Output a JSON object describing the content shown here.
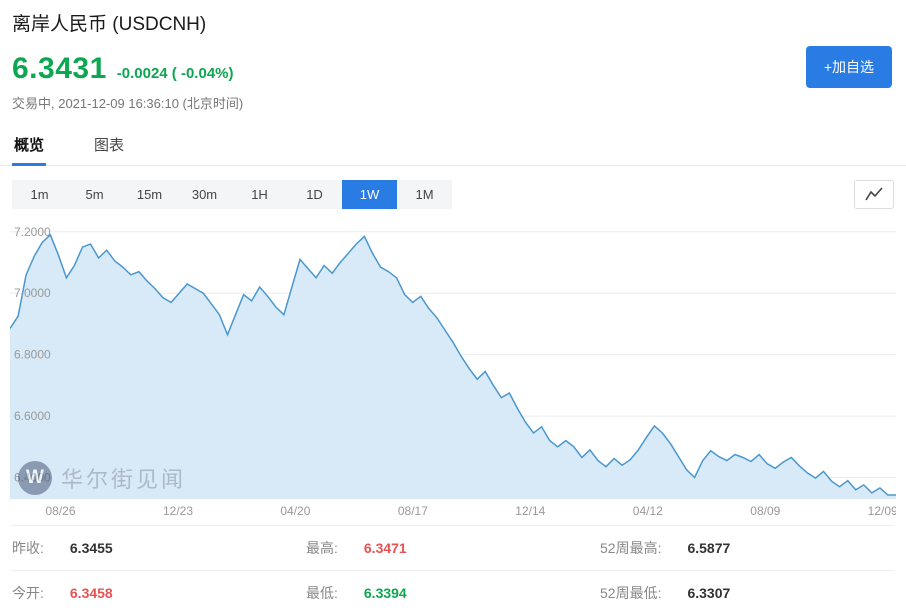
{
  "header": {
    "title": "离岸人民币 (USDCNH)",
    "price": "6.3431",
    "change": "-0.0024 ( -0.04%)",
    "status_line": "交易中, 2021-12-09 16:36:10 (北京时间)",
    "watchlist_button_label": "+加自选"
  },
  "tabs": [
    {
      "label": "概览",
      "active": true
    },
    {
      "label": "图表",
      "active": false
    }
  ],
  "intervals": [
    {
      "label": "1m",
      "active": false
    },
    {
      "label": "5m",
      "active": false
    },
    {
      "label": "15m",
      "active": false
    },
    {
      "label": "30m",
      "active": false
    },
    {
      "label": "1H",
      "active": false
    },
    {
      "label": "1D",
      "active": false
    },
    {
      "label": "1W",
      "active": true
    },
    {
      "label": "1M",
      "active": false
    }
  ],
  "watermark": {
    "logo_letter": "W",
    "text": "华尔街见闻"
  },
  "stats": [
    {
      "label": "昨收:",
      "value": "6.3455",
      "tone": "text"
    },
    {
      "label": "今开:",
      "value": "6.3458",
      "tone": "red"
    },
    {
      "label": "最高:",
      "value": "6.3471",
      "tone": "red"
    },
    {
      "label": "最低:",
      "value": "6.3394",
      "tone": "green"
    },
    {
      "label": "52周最高:",
      "value": "6.5877",
      "tone": "text"
    },
    {
      "label": "52周最低:",
      "value": "6.3307",
      "tone": "text"
    }
  ],
  "colors": {
    "green": "#0ca750",
    "red": "#e85252",
    "blue": "#2a7ce5",
    "text": "#333333",
    "axis_text": "#999999",
    "grid": "#ececec",
    "line": "#4a97cf",
    "fill": "#d8eaf8",
    "icon": "#444444"
  },
  "chart_data": {
    "type": "area",
    "title": "USDCNH 1W price history",
    "legend": [],
    "grid": true,
    "x_labels": [
      "08/26",
      "12/23",
      "04/20",
      "08/17",
      "12/14",
      "04/12",
      "08/09",
      "12/09"
    ],
    "y_ticks": [
      7.2,
      7.0,
      6.8,
      6.6,
      6.4
    ],
    "ylim": [
      6.33,
      7.235
    ],
    "values": [
      6.885,
      6.925,
      7.06,
      7.12,
      7.165,
      7.19,
      7.125,
      7.05,
      7.09,
      7.15,
      7.16,
      7.115,
      7.14,
      7.105,
      7.085,
      7.06,
      7.07,
      7.04,
      7.015,
      6.985,
      6.97,
      7.0,
      7.03,
      7.015,
      7.0,
      6.965,
      6.93,
      6.865,
      6.93,
      6.995,
      6.975,
      7.02,
      6.99,
      6.955,
      6.93,
      7.02,
      7.11,
      7.08,
      7.05,
      7.09,
      7.065,
      7.1,
      7.13,
      7.16,
      7.185,
      7.13,
      7.085,
      7.07,
      7.05,
      6.995,
      6.97,
      6.99,
      6.95,
      6.92,
      6.88,
      6.84,
      6.795,
      6.755,
      6.72,
      6.745,
      6.7,
      6.66,
      6.675,
      6.625,
      6.58,
      6.545,
      6.565,
      6.52,
      6.5,
      6.52,
      6.5,
      6.465,
      6.49,
      6.455,
      6.435,
      6.462,
      6.44,
      6.458,
      6.49,
      6.53,
      6.568,
      6.545,
      6.51,
      6.468,
      6.425,
      6.4,
      6.455,
      6.487,
      6.468,
      6.455,
      6.475,
      6.465,
      6.452,
      6.475,
      6.445,
      6.43,
      6.45,
      6.465,
      6.438,
      6.415,
      6.398,
      6.42,
      6.388,
      6.37,
      6.39,
      6.36,
      6.376,
      6.35,
      6.366,
      6.343,
      6.3431
    ]
  }
}
